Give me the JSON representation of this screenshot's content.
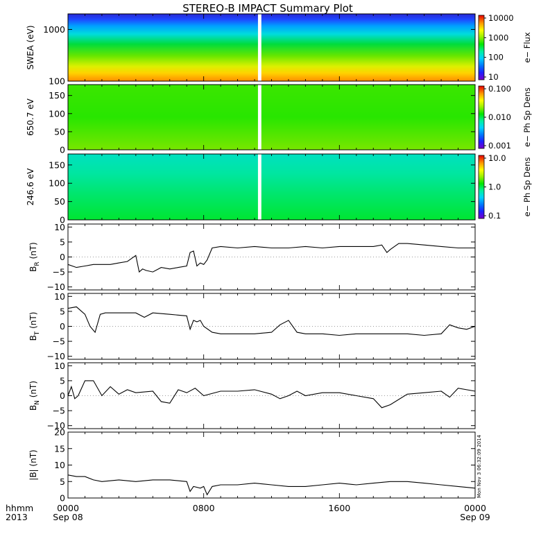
{
  "title": "STEREO-B IMPACT Summary Plot",
  "x_axis": {
    "header": [
      "hhmm",
      "2013"
    ],
    "ticks": [
      {
        "hhmm": "0000",
        "date": "Sep 08",
        "hour": 0
      },
      {
        "hhmm": "0800",
        "date": "",
        "hour": 8
      },
      {
        "hhmm": "1600",
        "date": "",
        "hour": 16
      },
      {
        "hhmm": "0000",
        "date": "Sep 09",
        "hour": 24
      }
    ],
    "range_hours": [
      0,
      24
    ],
    "data_gap_hours": [
      11.2,
      11.4
    ]
  },
  "timestamp": "Mon Nov 3 06:32:09 2014",
  "colors": {
    "line": "#000000",
    "colorscale": [
      "#7a00c8",
      "#1e1eff",
      "#00b4ff",
      "#00f0f0",
      "#00e600",
      "#96f000",
      "#ffff00",
      "#ff9600",
      "#ff1e00",
      "#d20000"
    ]
  },
  "chart_data": [
    {
      "type": "heatmap",
      "ylabel": "SWEA (eV)",
      "ylim": [
        100,
        2000
      ],
      "ylog": true,
      "yticks": [
        {
          "v": 1000,
          "label": "1000"
        },
        {
          "v": 100,
          "label": "100"
        }
      ],
      "colorbar_label": "e− Flux",
      "colorbar_ticks": [
        "10000",
        "1000",
        "100",
        "10"
      ],
      "colorbar_range": "10 – 10000 (log)"
    },
    {
      "type": "heatmap",
      "ylabel": "650.7 eV",
      "ylim": [
        0,
        180
      ],
      "yticks": [
        {
          "v": 150,
          "label": "150"
        },
        {
          "v": 100,
          "label": "100"
        },
        {
          "v": 50,
          "label": "50"
        },
        {
          "v": 0,
          "label": "0"
        }
      ],
      "colorbar_label": "e− Ph Sp Dens",
      "colorbar_ticks": [
        "0.100",
        "0.010",
        "0.001"
      ],
      "colorbar_range": "0.001 – 0.1 (log)"
    },
    {
      "type": "heatmap",
      "ylabel": "246.6 eV",
      "ylim": [
        0,
        180
      ],
      "yticks": [
        {
          "v": 150,
          "label": "150"
        },
        {
          "v": 100,
          "label": "100"
        },
        {
          "v": 50,
          "label": "50"
        },
        {
          "v": 0,
          "label": "0"
        }
      ],
      "colorbar_label": "e− Ph Sp Dens",
      "colorbar_ticks": [
        "10.0",
        "1.0",
        "0.1"
      ],
      "colorbar_range": "0.1 – 10 (log)"
    },
    {
      "type": "line",
      "ylabel": "B",
      "ylabel_sub": "R",
      "ylabel_unit": " (nT)",
      "ylim": [
        -11,
        11
      ],
      "yticks": [
        {
          "v": 10,
          "label": "10"
        },
        {
          "v": 5,
          "label": "5"
        },
        {
          "v": 0,
          "label": "0"
        },
        {
          "v": -5,
          "label": "−5"
        },
        {
          "v": -10,
          "label": "−10"
        }
      ],
      "x": [
        0,
        0.5,
        1,
        1.5,
        2,
        2.5,
        3,
        3.5,
        4,
        4.2,
        4.4,
        4.6,
        5,
        5.5,
        6,
        6.5,
        7,
        7.2,
        7.4,
        7.6,
        7.8,
        8,
        8.2,
        8.5,
        9,
        10,
        11,
        12,
        13,
        14,
        15,
        16,
        17,
        18,
        18.5,
        18.8,
        19,
        19.5,
        20,
        21,
        22,
        23,
        24
      ],
      "y": [
        -2.5,
        -3.5,
        -3,
        -2.5,
        -2.5,
        -2.5,
        -2,
        -1.5,
        0.5,
        -5,
        -4,
        -4.5,
        -5,
        -3.5,
        -4,
        -3.5,
        -3,
        1.5,
        2,
        -3,
        -2,
        -2.5,
        -1,
        3,
        3.5,
        3,
        3.5,
        3,
        3,
        3.5,
        3,
        3.5,
        3.5,
        3.5,
        4,
        1.5,
        2.5,
        4.5,
        4.5,
        4,
        3.5,
        3,
        3
      ]
    },
    {
      "type": "line",
      "ylabel": "B",
      "ylabel_sub": "T",
      "ylabel_unit": " (nT)",
      "ylim": [
        -11,
        11
      ],
      "yticks": [
        {
          "v": 10,
          "label": "10"
        },
        {
          "v": 5,
          "label": "5"
        },
        {
          "v": 0,
          "label": "0"
        },
        {
          "v": -5,
          "label": "−5"
        },
        {
          "v": -10,
          "label": "−10"
        }
      ],
      "x": [
        0,
        0.5,
        1,
        1.3,
        1.6,
        1.9,
        2.2,
        3,
        4,
        4.5,
        5,
        6,
        7,
        7.2,
        7.4,
        7.6,
        7.8,
        8,
        8.5,
        9,
        10,
        11,
        12,
        12.5,
        13,
        13.5,
        14,
        15,
        16,
        17,
        18,
        19,
        20,
        21,
        22,
        22.5,
        23,
        23.5,
        24
      ],
      "y": [
        6,
        6.5,
        4,
        0,
        -2,
        4,
        4.5,
        4.5,
        4.5,
        3,
        4.5,
        4,
        3.5,
        -1,
        2,
        1.5,
        2,
        0,
        -2,
        -2.5,
        -2.5,
        -2.5,
        -2,
        0.5,
        2,
        -2,
        -2.5,
        -2.5,
        -3,
        -2.5,
        -2.5,
        -2.5,
        -2.5,
        -3,
        -2.5,
        0.5,
        -0.5,
        -1,
        0
      ]
    },
    {
      "type": "line",
      "ylabel": "B",
      "ylabel_sub": "N",
      "ylabel_unit": " (nT)",
      "ylim": [
        -11,
        11
      ],
      "yticks": [
        {
          "v": 10,
          "label": "10"
        },
        {
          "v": 5,
          "label": "5"
        },
        {
          "v": 0,
          "label": "0"
        },
        {
          "v": -5,
          "label": "−5"
        },
        {
          "v": -10,
          "label": "−10"
        }
      ],
      "x": [
        0,
        0.2,
        0.4,
        0.6,
        1,
        1.5,
        2,
        2.5,
        3,
        3.5,
        4,
        5,
        5.5,
        6,
        6.5,
        7,
        7.5,
        8,
        9,
        10,
        11,
        12,
        12.5,
        13,
        13.5,
        14,
        15,
        16,
        17,
        18,
        18.5,
        19,
        20,
        21,
        22,
        22.5,
        23,
        24
      ],
      "y": [
        0,
        3,
        -1,
        0,
        5,
        5,
        0,
        3,
        0.5,
        2,
        1,
        1.5,
        -2,
        -2.5,
        2,
        1,
        2.5,
        0,
        1.5,
        1.5,
        2,
        0.5,
        -1,
        0,
        1.5,
        0,
        1,
        1,
        0,
        -1,
        -4,
        -3,
        0.5,
        1,
        1.5,
        -0.5,
        2.5,
        1.5
      ]
    },
    {
      "type": "line",
      "ylabel": "|B|",
      "ylabel_sub": "",
      "ylabel_unit": " (nT)",
      "ylim": [
        0,
        20
      ],
      "yticks": [
        {
          "v": 20,
          "label": "20"
        },
        {
          "v": 15,
          "label": "15"
        },
        {
          "v": 10,
          "label": "10"
        },
        {
          "v": 5,
          "label": "5"
        },
        {
          "v": 0,
          "label": "0"
        }
      ],
      "x": [
        0,
        0.5,
        1,
        1.5,
        2,
        3,
        4,
        5,
        6,
        7,
        7.2,
        7.4,
        7.8,
        8,
        8.2,
        8.5,
        9,
        10,
        11,
        12,
        13,
        14,
        15,
        16,
        17,
        18,
        19,
        20,
        21,
        22,
        23,
        24
      ],
      "y": [
        7,
        6.5,
        6.5,
        5.5,
        5,
        5.5,
        5,
        5.5,
        5.5,
        5,
        2,
        3.5,
        3,
        3.5,
        1,
        3.5,
        4,
        4,
        4.5,
        4,
        3.5,
        3.5,
        4,
        4.5,
        4,
        4.5,
        5,
        5,
        4.5,
        4,
        3.5,
        3
      ]
    }
  ]
}
